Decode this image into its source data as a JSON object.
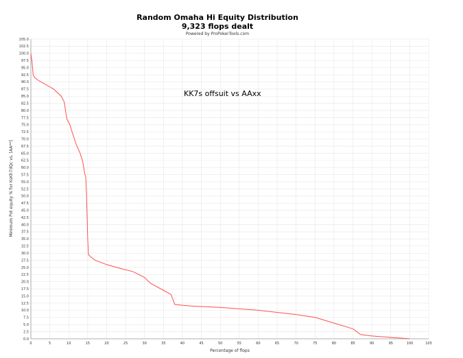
{
  "chart_data": {
    "type": "line",
    "title": "Random Omaha Hi Equity Distribution",
    "subtitle": "9,323 flops dealt",
    "credit": "Powered by ProPokerTools.com",
    "xlabel": "Percentage of flops",
    "ylabel": "Minimum Pot equity % for KsKh7dQc vs. [AA**]",
    "annotation": "KK7s offsuit vs AAxx",
    "xlim": [
      0,
      105
    ],
    "ylim": [
      0,
      105
    ],
    "x_ticks": [
      0,
      5,
      10,
      15,
      20,
      25,
      30,
      35,
      40,
      45,
      50,
      55,
      60,
      65,
      70,
      75,
      80,
      85,
      90,
      95,
      100,
      105
    ],
    "y_ticks": [
      0.0,
      2.5,
      5.0,
      7.5,
      10.0,
      12.5,
      15.0,
      17.5,
      20.0,
      22.5,
      25.0,
      27.5,
      30.0,
      32.5,
      35.0,
      37.5,
      40.0,
      42.5,
      45.0,
      47.5,
      50.0,
      52.5,
      55.0,
      57.5,
      60.0,
      62.5,
      65.0,
      67.5,
      70.0,
      72.5,
      75.0,
      77.5,
      80.0,
      82.5,
      85.0,
      87.5,
      90.0,
      92.5,
      95.0,
      97.5,
      100.0,
      102.5,
      105.0
    ],
    "grid": true,
    "series": [
      {
        "color": "#ff4d4d",
        "points": [
          [
            0,
            100
          ],
          [
            0.3,
            97
          ],
          [
            0.6,
            92.5
          ],
          [
            1,
            91.5
          ],
          [
            2,
            90.5
          ],
          [
            4,
            89
          ],
          [
            6,
            87.5
          ],
          [
            8,
            85
          ],
          [
            8.8,
            83
          ],
          [
            9.5,
            77
          ],
          [
            10.3,
            75
          ],
          [
            11,
            72
          ],
          [
            12,
            68
          ],
          [
            13,
            65
          ],
          [
            13.7,
            62
          ],
          [
            14.2,
            58
          ],
          [
            14.5,
            56.5
          ],
          [
            14.7,
            50
          ],
          [
            14.9,
            40
          ],
          [
            15,
            35
          ],
          [
            15.2,
            29.5
          ],
          [
            16,
            28.5
          ],
          [
            17,
            27.5
          ],
          [
            20,
            26
          ],
          [
            24,
            24.5
          ],
          [
            27,
            23.5
          ],
          [
            30,
            21.5
          ],
          [
            31.5,
            19.5
          ],
          [
            35,
            17
          ],
          [
            37,
            15.5
          ],
          [
            38,
            12
          ],
          [
            42,
            11.5
          ],
          [
            50,
            11
          ],
          [
            60,
            10
          ],
          [
            70,
            8.5
          ],
          [
            75,
            7.5
          ],
          [
            80,
            5.5
          ],
          [
            85,
            3.5
          ],
          [
            87,
            1.5
          ],
          [
            90,
            1
          ],
          [
            95,
            0.5
          ],
          [
            100,
            0
          ]
        ]
      }
    ]
  }
}
